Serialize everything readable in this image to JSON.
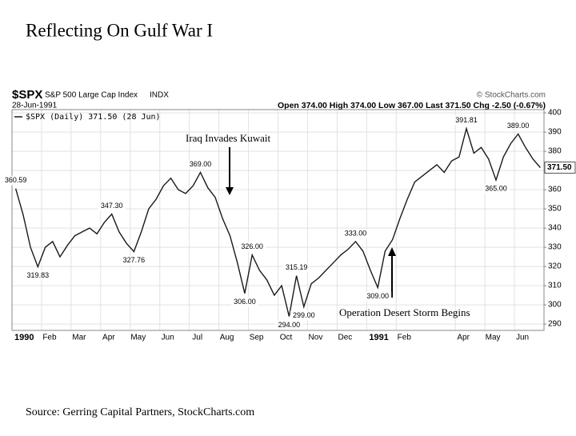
{
  "chart_data": {
    "type": "line",
    "title": "Reflecting On Gulf War I",
    "symbol": "$SPX",
    "name": "S&P 500 Large Cap Index",
    "exchange": "INDX",
    "date": "28-Jun-1991",
    "quote": "Open 374.00 High 374.00 Low 367.00 Last 371.50 Chg -2.50 (-0.67%)",
    "watermark": "© StockCharts.com",
    "source": "Source: Gerring Capital Partners, StockCharts.com",
    "annotations": [
      "Iraq Invades Kuwait",
      "Operation Desert Storm Begins"
    ],
    "categories": [
      "1990",
      null,
      null,
      null,
      "Feb",
      null,
      null,
      null,
      "Mar",
      null,
      null,
      null,
      "Apr",
      null,
      null,
      null,
      "May",
      null,
      null,
      null,
      "Jun",
      null,
      null,
      null,
      "Jul",
      null,
      null,
      null,
      "Aug",
      null,
      null,
      null,
      "Sep",
      null,
      null,
      null,
      "Oct",
      null,
      null,
      null,
      "Nov",
      null,
      null,
      null,
      "Dec",
      null,
      null,
      null,
      "1991",
      null,
      null,
      null,
      "Feb",
      null,
      null,
      null,
      null,
      null,
      null,
      null,
      "Apr",
      null,
      null,
      null,
      "May",
      null,
      null,
      null,
      "Jun",
      null,
      null,
      null
    ],
    "series": [
      {
        "name": "$SPX (Daily) 371.50 (28 Jun)",
        "color": "#1a1a1a",
        "values": [
          360.59,
          347,
          330,
          319.83,
          330,
          333,
          325,
          331,
          336,
          338,
          340,
          337,
          343,
          347.3,
          338,
          332,
          327.76,
          338,
          350,
          355,
          362,
          366,
          360,
          358,
          362,
          369,
          361,
          356,
          345,
          336,
          322,
          306,
          326,
          318,
          313,
          305,
          310,
          294,
          315.19,
          299,
          311,
          314,
          318,
          322,
          326,
          329,
          333,
          328,
          318,
          309,
          328,
          334,
          345,
          355,
          364,
          367,
          370,
          373,
          369,
          375,
          377,
          391.81,
          379,
          382,
          376,
          365,
          377,
          384,
          389,
          382,
          376,
          371.5
        ],
        "value_labels": [
          "360.59",
          null,
          null,
          "319.83",
          null,
          null,
          null,
          null,
          null,
          null,
          null,
          null,
          null,
          "347.30",
          null,
          null,
          "327.76",
          null,
          null,
          null,
          null,
          null,
          null,
          null,
          null,
          "369.00",
          null,
          null,
          null,
          null,
          null,
          "306.00",
          "326.00",
          null,
          null,
          null,
          null,
          "294.00",
          "315.19",
          "299.00",
          null,
          null,
          null,
          null,
          null,
          null,
          "333.00",
          null,
          null,
          "309.00",
          null,
          null,
          null,
          null,
          null,
          null,
          null,
          null,
          null,
          null,
          null,
          "391.81",
          null,
          null,
          null,
          "365.00",
          null,
          null,
          "389.00",
          null,
          null,
          "371.50"
        ]
      }
    ],
    "ylim": [
      286.7,
      401.7
    ],
    "yticks": [
      290,
      300,
      310,
      320,
      330,
      340,
      350,
      360,
      370,
      380,
      390,
      400
    ],
    "grid": true
  }
}
